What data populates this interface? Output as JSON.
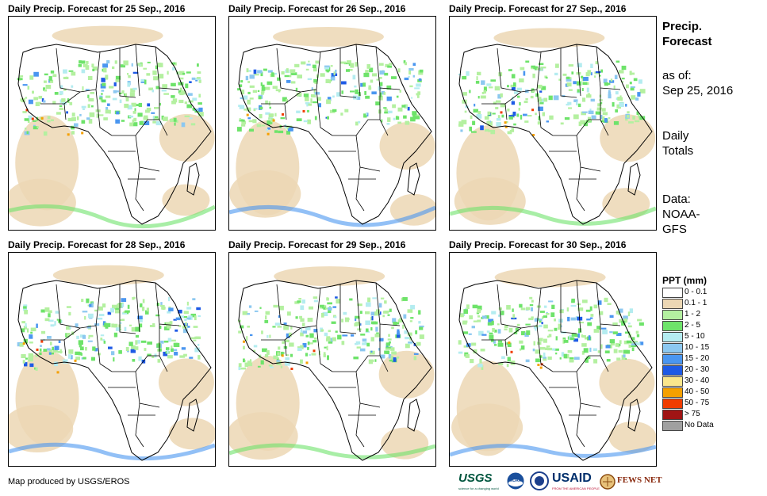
{
  "panels": [
    {
      "title": "Daily Precip. Forecast for 25  Sep., 2016"
    },
    {
      "title": "Daily Precip. Forecast for 26  Sep., 2016"
    },
    {
      "title": "Daily Precip. Forecast for 27  Sep., 2016"
    },
    {
      "title": "Daily Precip. Forecast for 28  Sep., 2016"
    },
    {
      "title": "Daily Precip. Forecast for 29  Sep., 2016"
    },
    {
      "title": "Daily Precip. Forecast for 30  Sep., 2016"
    }
  ],
  "side": {
    "title_line1": "Precip.",
    "title_line2": "Forecast",
    "asof_label": "as of:",
    "asof_date": "Sep 25, 2016",
    "totals_line1": "Daily",
    "totals_line2": "Totals",
    "data_line1": "Data:",
    "data_line2": "NOAA-",
    "data_line3": "GFS"
  },
  "legend": {
    "title": "PPT (mm)",
    "items": [
      {
        "label": "0 - 0.1",
        "color": "#ffffff"
      },
      {
        "label": "0.1 - 1",
        "color": "#ecd7b4"
      },
      {
        "label": "1 - 2",
        "color": "#b4f0a0"
      },
      {
        "label": "2 - 5",
        "color": "#6ee36a"
      },
      {
        "label": "5 - 10",
        "color": "#b4ecf0"
      },
      {
        "label": "10 - 15",
        "color": "#8cc8f0"
      },
      {
        "label": "15 - 20",
        "color": "#4a96f0"
      },
      {
        "label": "20 - 30",
        "color": "#1e5ae6"
      },
      {
        "label": "30 - 40",
        "color": "#fae68c"
      },
      {
        "label": "40 - 50",
        "color": "#f5a000"
      },
      {
        "label": "50 - 75",
        "color": "#f03c00"
      },
      {
        "label": "> 75",
        "color": "#a01414"
      },
      {
        "label": "No Data",
        "color": "#a0a0a0"
      }
    ]
  },
  "credit": "Map produced by USGS/EROS",
  "logos": {
    "usgs": "USGS",
    "usgs_tagline": "science for a changing world",
    "noaa": "NOAA",
    "usaid": "USAID",
    "usaid_tagline": "FROM THE AMERICAN PEOPLE",
    "fewsnet": "FEWS NET"
  }
}
